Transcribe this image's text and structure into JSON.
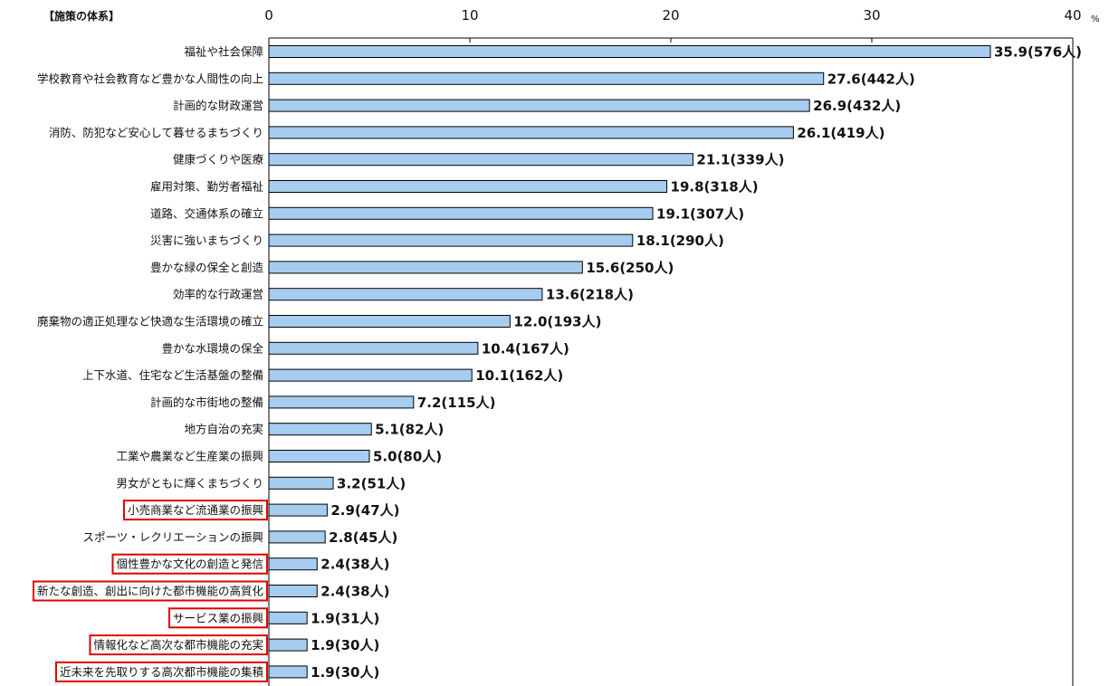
{
  "chart_data": {
    "type": "bar",
    "orientation": "horizontal",
    "heading": "【施策の体系】",
    "unit": "%",
    "xlim": [
      0,
      40
    ],
    "ticks": [
      0,
      10,
      20,
      30,
      40
    ],
    "bar_color": "#a6cdf0",
    "highlight_color": "#e00000",
    "categories": [
      "福祉や社会保障",
      "学校教育や社会教育など豊かな人間性の向上",
      "計画的な財政運営",
      "消防、防犯など安心して暮せるまちづくり",
      "健康づくりや医療",
      "雇用対策、勤労者福祉",
      "道路、交通体系の確立",
      "災害に強いまちづくり",
      "豊かな緑の保全と創造",
      "効率的な行政運営",
      "廃棄物の適正処理など快適な生活環境の確立",
      "豊かな水環境の保全",
      "上下水道、住宅など生活基盤の整備",
      "計画的な市街地の整備",
      "地方自治の充実",
      "工業や農業など生産業の振興",
      "男女がともに輝くまちづくり",
      "小売商業など流通業の振興",
      "スポーツ・レクリエーションの振興",
      "個性豊かな文化の創造と発信",
      "新たな創造、創出に向けた都市機能の高質化",
      "サービス業の振興",
      "情報化など高次な都市機能の充実",
      "近未来を先取りする高次都市機能の集積"
    ],
    "values": [
      35.9,
      27.6,
      26.9,
      26.1,
      21.1,
      19.8,
      19.1,
      18.1,
      15.6,
      13.6,
      12.0,
      10.4,
      10.1,
      7.2,
      5.1,
      5.0,
      3.2,
      2.9,
      2.8,
      2.4,
      2.4,
      1.9,
      1.9,
      1.9
    ],
    "value_labels": [
      "35.9(576人)",
      "27.6(442人)",
      "26.9(432人)",
      "26.1(419人)",
      "21.1(339人)",
      "19.8(318人)",
      "19.1(307人)",
      "18.1(290人)",
      "15.6(250人)",
      "13.6(218人)",
      "12.0(193人)",
      "10.4(167人)",
      "10.1(162人)",
      "7.2(115人)",
      "5.1(82人)",
      "5.0(80人)",
      "3.2(51人)",
      "2.9(47人)",
      "2.8(45人)",
      "2.4(38人)",
      "2.4(38人)",
      "1.9(31人)",
      "1.9(30人)",
      "1.9(30人)"
    ],
    "highlighted": [
      false,
      false,
      false,
      false,
      false,
      false,
      false,
      false,
      false,
      false,
      false,
      false,
      false,
      false,
      false,
      false,
      false,
      true,
      false,
      true,
      true,
      true,
      true,
      true
    ]
  }
}
